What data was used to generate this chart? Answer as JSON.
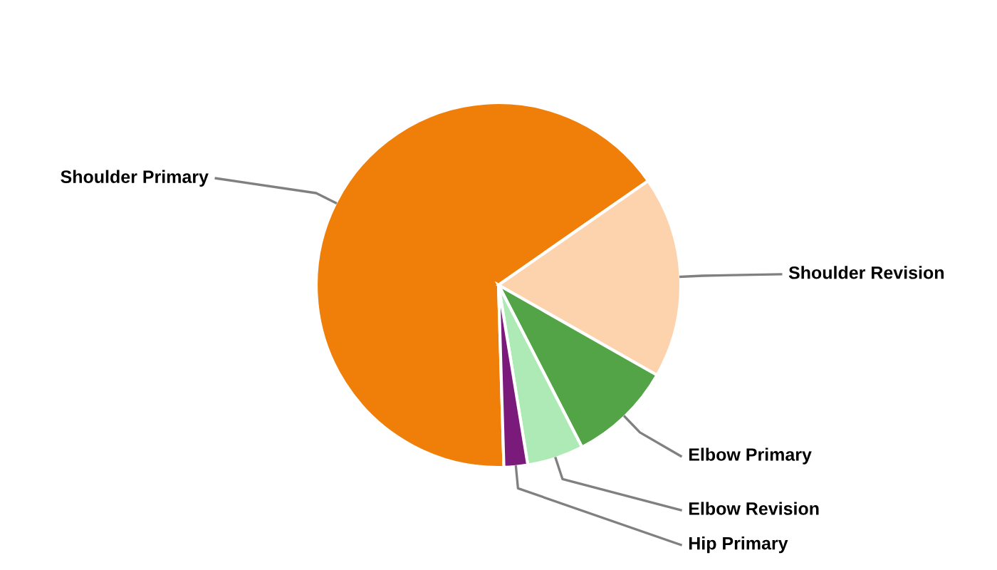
{
  "chart_data": {
    "type": "pie",
    "categories": [
      "Shoulder Primary",
      "Shoulder Revision",
      "Elbow Primary",
      "Elbow Revision",
      "Hip Primary"
    ],
    "values": [
      65.8,
      17.9,
      9.2,
      5.0,
      2.1
    ],
    "colors": [
      "#f07f09",
      "#fdd3ad",
      "#52a447",
      "#aeeab5",
      "#7a1a7a"
    ],
    "legend": false
  }
}
